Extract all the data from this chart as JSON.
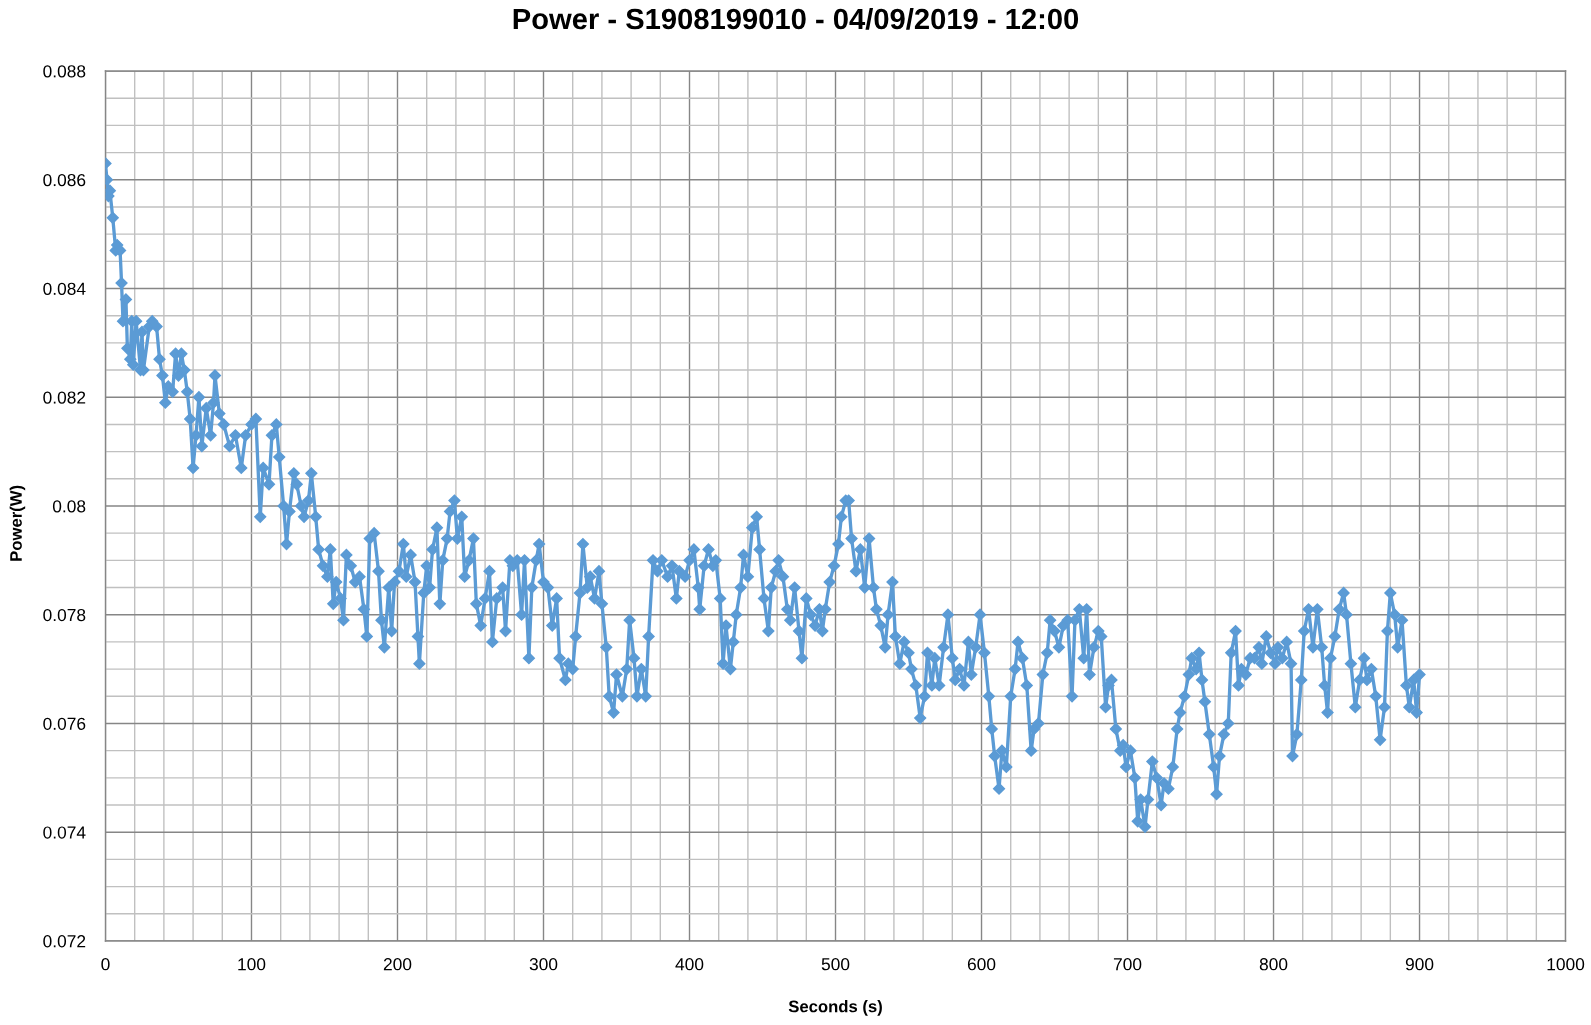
{
  "chart_data": {
    "type": "line",
    "title": "Power - S1908199010 - 04/09/2019 - 12:00",
    "xlabel": "Seconds (s)",
    "ylabel": "Power(W)",
    "xlim": [
      0,
      1000
    ],
    "ylim": [
      0.072,
      0.088
    ],
    "xticks": [
      0,
      {
        "value": 20,
        "label": null
      },
      {
        "value": 40,
        "label": null
      },
      {
        "value": 60,
        "label": null
      },
      {
        "value": 80,
        "label": null
      },
      100,
      {
        "value": 120,
        "label": null
      },
      {
        "value": 140,
        "label": null
      },
      {
        "value": 160,
        "label": null
      },
      {
        "value": 180,
        "label": null
      },
      200,
      {
        "value": 220,
        "label": null
      },
      {
        "value": 240,
        "label": null
      },
      {
        "value": 260,
        "label": null
      },
      {
        "value": 280,
        "label": null
      },
      300,
      {
        "value": 320,
        "label": null
      },
      {
        "value": 340,
        "label": null
      },
      {
        "value": 360,
        "label": null
      },
      {
        "value": 380,
        "label": null
      },
      400,
      {
        "value": 420,
        "label": null
      },
      {
        "value": 440,
        "label": null
      },
      {
        "value": 460,
        "label": null
      },
      {
        "value": 480,
        "label": null
      },
      500,
      {
        "value": 520,
        "label": null
      },
      {
        "value": 540,
        "label": null
      },
      {
        "value": 560,
        "label": null
      },
      {
        "value": 580,
        "label": null
      },
      600,
      {
        "value": 620,
        "label": null
      },
      {
        "value": 640,
        "label": null
      },
      {
        "value": 660,
        "label": null
      },
      {
        "value": 680,
        "label": null
      },
      700,
      {
        "value": 720,
        "label": null
      },
      {
        "value": 740,
        "label": null
      },
      {
        "value": 760,
        "label": null
      },
      {
        "value": 780,
        "label": null
      },
      800,
      {
        "value": 820,
        "label": null
      },
      {
        "value": 840,
        "label": null
      },
      {
        "value": 860,
        "label": null
      },
      {
        "value": 880,
        "label": null
      },
      900,
      {
        "value": 920,
        "label": null
      },
      {
        "value": 940,
        "label": null
      },
      {
        "value": 960,
        "label": null
      },
      {
        "value": 980,
        "label": null
      },
      1000
    ],
    "yticks": [
      0.072,
      {
        "value": 0.0725,
        "label": null
      },
      {
        "value": 0.073,
        "label": null
      },
      {
        "value": 0.0735,
        "label": null
      },
      0.074,
      {
        "value": 0.0745,
        "label": null
      },
      {
        "value": 0.075,
        "label": null
      },
      {
        "value": 0.0755,
        "label": null
      },
      0.076,
      {
        "value": 0.0765,
        "label": null
      },
      {
        "value": 0.077,
        "label": null
      },
      {
        "value": 0.0775,
        "label": null
      },
      0.078,
      {
        "value": 0.0785,
        "label": null
      },
      {
        "value": 0.079,
        "label": null
      },
      {
        "value": 0.0795,
        "label": null
      },
      0.08,
      {
        "value": 0.0805,
        "label": null
      },
      {
        "value": 0.081,
        "label": null
      },
      {
        "value": 0.0815,
        "label": null
      },
      0.082,
      {
        "value": 0.0825,
        "label": null
      },
      {
        "value": 0.083,
        "label": null
      },
      {
        "value": 0.0835,
        "label": null
      },
      0.084,
      {
        "value": 0.0845,
        "label": null
      },
      {
        "value": 0.085,
        "label": null
      },
      {
        "value": 0.0855,
        "label": null
      },
      0.086,
      {
        "value": 0.0865,
        "label": null
      },
      {
        "value": 0.087,
        "label": null
      },
      {
        "value": 0.0875,
        "label": null
      },
      0.088
    ],
    "grid": true,
    "marker": "diamond",
    "line_style": "solid",
    "series": [
      {
        "color": "#5b9bd5",
        "x": [
          0,
          1,
          2,
          3,
          5,
          7,
          8,
          10,
          11,
          12,
          14,
          15,
          17,
          18,
          19,
          21,
          24,
          25,
          26,
          30,
          32,
          35,
          37,
          39,
          41,
          43,
          46,
          48,
          50,
          52,
          54,
          56,
          58,
          60,
          62,
          64,
          66,
          69,
          72,
          74,
          75,
          78,
          81,
          85,
          89,
          93,
          96,
          100,
          103,
          106,
          108,
          112,
          114,
          117,
          119,
          122,
          124,
          126,
          129,
          131,
          134,
          136,
          139,
          141,
          144,
          146,
          149,
          152,
          154,
          156,
          158,
          161,
          163,
          165,
          168,
          171,
          174,
          177,
          179,
          181,
          184,
          187,
          189,
          191,
          194,
          196,
          198,
          201,
          204,
          206,
          209,
          212,
          214,
          215,
          218,
          220,
          222,
          224,
          227,
          229,
          231,
          234,
          236,
          239,
          241,
          244,
          246,
          249,
          252,
          254,
          257,
          260,
          263,
          265,
          268,
          272,
          274,
          277,
          279,
          282,
          285,
          287,
          290,
          292,
          295,
          297,
          300,
          303,
          306,
          309,
          311,
          315,
          317,
          320,
          322,
          325,
          327,
          330,
          332,
          335,
          338,
          340,
          343,
          345,
          348,
          350,
          354,
          357,
          359,
          362,
          364,
          367,
          370,
          372,
          375,
          378,
          381,
          385,
          388,
          391,
          393,
          397,
          400,
          403,
          406,
          407,
          410,
          413,
          416,
          418,
          421,
          423,
          425,
          428,
          430,
          432,
          435,
          437,
          440,
          443,
          446,
          448,
          451,
          454,
          456,
          459,
          461,
          464,
          467,
          469,
          472,
          475,
          477,
          480,
          483,
          486,
          489,
          491,
          493,
          496,
          499,
          502,
          504,
          507,
          509,
          511,
          514,
          517,
          520,
          523,
          526,
          528,
          531,
          534,
          536,
          539,
          541,
          544,
          547,
          550,
          552,
          555,
          558,
          561,
          563,
          566,
          568,
          571,
          574,
          577,
          580,
          582,
          585,
          588,
          591,
          593,
          596,
          599,
          602,
          605,
          607,
          609,
          612,
          614,
          617,
          620,
          623,
          625,
          628,
          631,
          634,
          636,
          639,
          642,
          645,
          647,
          650,
          653,
          656,
          659,
          662,
          664,
          667,
          670,
          672,
          674,
          677,
          680,
          682,
          685,
          687,
          689,
          692,
          695,
          697,
          699,
          702,
          705,
          707,
          709,
          712,
          714,
          717,
          720,
          723,
          725,
          728,
          731,
          734,
          736,
          739,
          742,
          744,
          747,
          749,
          751,
          753,
          756,
          759,
          761,
          763,
          766,
          769,
          771,
          774,
          776,
          778,
          781,
          784,
          787,
          790,
          792,
          795,
          798,
          801,
          803,
          806,
          809,
          812,
          813,
          816,
          819,
          821,
          824,
          827,
          830,
          833,
          835,
          837,
          839,
          842,
          845,
          848,
          850,
          853,
          856,
          859,
          862,
          864,
          867,
          870,
          873,
          876,
          878,
          880,
          883,
          885,
          888,
          891,
          893,
          896,
          898,
          900
        ],
        "values": [
          0.0863,
          0.086,
          0.0857,
          0.0858,
          0.0853,
          0.0847,
          0.0848,
          0.0847,
          0.0841,
          0.0834,
          0.0838,
          0.0829,
          0.0827,
          0.0834,
          0.0826,
          0.0834,
          0.0825,
          0.0832,
          0.0825,
          0.0833,
          0.0834,
          0.0833,
          0.0827,
          0.0824,
          0.0819,
          0.0822,
          0.0821,
          0.0828,
          0.0824,
          0.0828,
          0.0825,
          0.0821,
          0.0816,
          0.0807,
          0.0813,
          0.082,
          0.0811,
          0.0818,
          0.0813,
          0.0819,
          0.0824,
          0.0817,
          0.0815,
          0.0811,
          0.0813,
          0.0807,
          0.0813,
          0.0815,
          0.0816,
          0.0798,
          0.0807,
          0.0804,
          0.0813,
          0.0815,
          0.0809,
          0.08,
          0.0793,
          0.0799,
          0.0806,
          0.0804,
          0.08,
          0.0798,
          0.0801,
          0.0806,
          0.0798,
          0.0792,
          0.0789,
          0.0787,
          0.0792,
          0.0782,
          0.0786,
          0.0783,
          0.0779,
          0.0791,
          0.0789,
          0.0786,
          0.0787,
          0.0781,
          0.0776,
          0.0794,
          0.0795,
          0.0788,
          0.0779,
          0.0774,
          0.0785,
          0.0777,
          0.0786,
          0.0788,
          0.0793,
          0.0787,
          0.0791,
          0.0786,
          0.0776,
          0.0771,
          0.0784,
          0.0789,
          0.0785,
          0.0792,
          0.0796,
          0.0782,
          0.079,
          0.0794,
          0.0799,
          0.0801,
          0.0794,
          0.0798,
          0.0787,
          0.079,
          0.0794,
          0.0782,
          0.0778,
          0.0783,
          0.0788,
          0.0775,
          0.0783,
          0.0785,
          0.0777,
          0.079,
          0.0789,
          0.079,
          0.078,
          0.079,
          0.0772,
          0.0785,
          0.079,
          0.0793,
          0.0786,
          0.0785,
          0.0778,
          0.0783,
          0.0772,
          0.0768,
          0.0771,
          0.077,
          0.0776,
          0.0784,
          0.0793,
          0.0785,
          0.0787,
          0.0783,
          0.0788,
          0.0782,
          0.0774,
          0.0765,
          0.0762,
          0.0769,
          0.0765,
          0.077,
          0.0779,
          0.0772,
          0.0765,
          0.077,
          0.0765,
          0.0776,
          0.079,
          0.0788,
          0.079,
          0.0787,
          0.0789,
          0.0783,
          0.0788,
          0.0787,
          0.079,
          0.0792,
          0.0785,
          0.0781,
          0.0789,
          0.0792,
          0.0789,
          0.079,
          0.0783,
          0.0771,
          0.0778,
          0.077,
          0.0775,
          0.078,
          0.0785,
          0.0791,
          0.0787,
          0.0796,
          0.0798,
          0.0792,
          0.0783,
          0.0777,
          0.0785,
          0.0788,
          0.079,
          0.0787,
          0.0781,
          0.0779,
          0.0785,
          0.0777,
          0.0772,
          0.0783,
          0.078,
          0.0778,
          0.0781,
          0.0777,
          0.0781,
          0.0786,
          0.0789,
          0.0793,
          0.0798,
          0.0801,
          0.0801,
          0.0794,
          0.0788,
          0.0792,
          0.0785,
          0.0794,
          0.0785,
          0.0781,
          0.0778,
          0.0774,
          0.078,
          0.0786,
          0.0776,
          0.0771,
          0.0775,
          0.0773,
          0.077,
          0.0767,
          0.0761,
          0.0765,
          0.0773,
          0.0767,
          0.0772,
          0.0767,
          0.0774,
          0.078,
          0.0772,
          0.0768,
          0.077,
          0.0767,
          0.0775,
          0.0769,
          0.0774,
          0.078,
          0.0773,
          0.0765,
          0.0759,
          0.0754,
          0.0748,
          0.0755,
          0.0752,
          0.0765,
          0.077,
          0.0775,
          0.0772,
          0.0767,
          0.0755,
          0.0759,
          0.076,
          0.0769,
          0.0773,
          0.0779,
          0.0777,
          0.0774,
          0.0778,
          0.0779,
          0.0765,
          0.0779,
          0.0781,
          0.0772,
          0.0781,
          0.0769,
          0.0774,
          0.0777,
          0.0776,
          0.0763,
          0.0767,
          0.0768,
          0.0759,
          0.0755,
          0.0756,
          0.0752,
          0.0755,
          0.075,
          0.0742,
          0.0746,
          0.0741,
          0.0746,
          0.0753,
          0.075,
          0.0745,
          0.0749,
          0.0748,
          0.0752,
          0.0759,
          0.0762,
          0.0765,
          0.0769,
          0.0772,
          0.077,
          0.0773,
          0.0768,
          0.0764,
          0.0758,
          0.0752,
          0.0747,
          0.0754,
          0.0758,
          0.076,
          0.0773,
          0.0777,
          0.0767,
          0.077,
          0.0769,
          0.0772,
          0.0772,
          0.0774,
          0.0771,
          0.0776,
          0.0773,
          0.0771,
          0.0774,
          0.0772,
          0.0775,
          0.0771,
          0.0754,
          0.0758,
          0.0768,
          0.0777,
          0.0781,
          0.0774,
          0.0781,
          0.0774,
          0.0767,
          0.0762,
          0.0772,
          0.0776,
          0.0781,
          0.0784,
          0.078,
          0.0771,
          0.0763,
          0.0768,
          0.0772,
          0.0768,
          0.077,
          0.0765,
          0.0757,
          0.0763,
          0.0777,
          0.0784,
          0.078,
          0.0774,
          0.0779,
          0.0767,
          0.0763,
          0.0768,
          0.0762,
          0.0769
        ]
      }
    ]
  }
}
